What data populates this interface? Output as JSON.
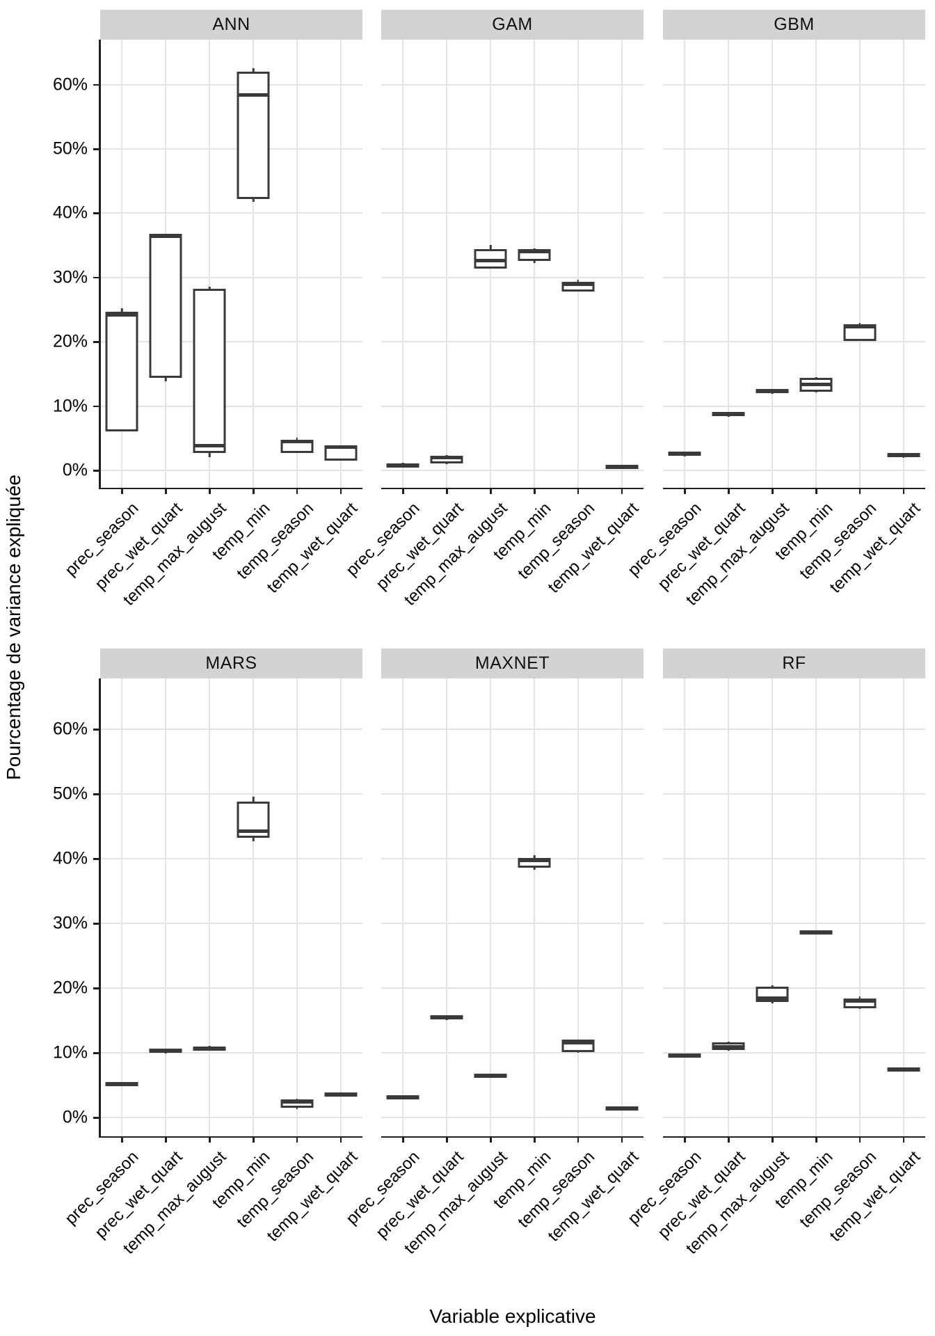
{
  "chart_data": {
    "type": "boxplot",
    "title": "",
    "xlabel": "Variable explicative",
    "ylabel": "Pourcentage de variance expliquée",
    "ylim": [
      -3,
      66
    ],
    "y_tick_values": [
      0,
      10,
      20,
      30,
      40,
      50,
      60
    ],
    "y_tick_labels": [
      "0%",
      "10%",
      "20%",
      "30%",
      "40%",
      "50%",
      "60%"
    ],
    "grid": "light horizontal lines every 10%, light vertical line at each category",
    "legend": "none",
    "categories": [
      "prec_season",
      "prec_wet_quart",
      "temp_max_august",
      "temp_min",
      "temp_season",
      "temp_wet_quart"
    ],
    "facet_layout": [
      "ANN",
      "GAM",
      "GBM",
      "MARS",
      "MAXNET",
      "RF"
    ],
    "facets": [
      {
        "name": "ANN",
        "boxes": [
          {
            "category": "prec_season",
            "min": 6.1,
            "q1": 6.1,
            "median": 24.2,
            "q3": 24.7,
            "max": 25.2
          },
          {
            "category": "prec_wet_quart",
            "min": 13.9,
            "q1": 14.4,
            "median": 36.4,
            "q3": 36.8,
            "max": 36.8
          },
          {
            "category": "temp_max_august",
            "min": 2.1,
            "q1": 2.7,
            "median": 3.8,
            "q3": 28.3,
            "max": 28.6
          },
          {
            "category": "temp_min",
            "min": 41.8,
            "q1": 42.2,
            "median": 58.4,
            "q3": 62.0,
            "max": 62.6
          },
          {
            "category": "temp_season",
            "min": 2.7,
            "q1": 2.7,
            "median": 4.5,
            "q3": 4.8,
            "max": 5.1
          },
          {
            "category": "temp_wet_quart",
            "min": 1.5,
            "q1": 1.5,
            "median": 3.6,
            "q3": 3.8,
            "max": 3.8
          }
        ]
      },
      {
        "name": "GAM",
        "boxes": [
          {
            "category": "prec_season",
            "min": 0.5,
            "q1": 0.6,
            "median": 0.8,
            "q3": 1.1,
            "max": 1.2
          },
          {
            "category": "prec_wet_quart",
            "min": 1.0,
            "q1": 1.1,
            "median": 2.0,
            "q3": 2.3,
            "max": 2.4
          },
          {
            "category": "temp_max_august",
            "min": 31.4,
            "q1": 31.4,
            "median": 32.6,
            "q3": 34.4,
            "max": 35.1
          },
          {
            "category": "temp_min",
            "min": 32.3,
            "q1": 32.6,
            "median": 34.0,
            "q3": 34.4,
            "max": 34.5
          },
          {
            "category": "temp_season",
            "min": 27.8,
            "q1": 27.8,
            "median": 29.0,
            "q3": 29.3,
            "max": 29.6
          },
          {
            "category": "temp_wet_quart",
            "min": 0.3,
            "q1": 0.4,
            "median": 0.6,
            "q3": 0.9,
            "max": 0.9
          }
        ]
      },
      {
        "name": "GBM",
        "boxes": [
          {
            "category": "prec_season",
            "min": 2.2,
            "q1": 2.3,
            "median": 2.6,
            "q3": 2.9,
            "max": 2.9
          },
          {
            "category": "prec_wet_quart",
            "min": 8.3,
            "q1": 8.4,
            "median": 8.7,
            "q3": 9.1,
            "max": 9.1
          },
          {
            "category": "temp_max_august",
            "min": 11.9,
            "q1": 12.0,
            "median": 12.3,
            "q3": 12.7,
            "max": 12.7
          },
          {
            "category": "temp_min",
            "min": 12.1,
            "q1": 12.2,
            "median": 13.4,
            "q3": 14.4,
            "max": 14.5
          },
          {
            "category": "temp_season",
            "min": 20.1,
            "q1": 20.1,
            "median": 22.3,
            "q3": 22.7,
            "max": 22.9
          },
          {
            "category": "temp_wet_quart",
            "min": 2.0,
            "q1": 2.1,
            "median": 2.4,
            "q3": 2.7,
            "max": 2.7
          }
        ]
      },
      {
        "name": "MARS",
        "boxes": [
          {
            "category": "prec_season",
            "min": 4.9,
            "q1": 5.0,
            "median": 5.2,
            "q3": 5.5,
            "max": 5.5
          },
          {
            "category": "prec_wet_quart",
            "min": 9.9,
            "q1": 10.0,
            "median": 10.3,
            "q3": 10.6,
            "max": 10.6
          },
          {
            "category": "temp_max_august",
            "min": 10.3,
            "q1": 10.4,
            "median": 10.7,
            "q3": 11.0,
            "max": 11.1
          },
          {
            "category": "temp_min",
            "min": 42.7,
            "q1": 43.2,
            "median": 44.3,
            "q3": 48.8,
            "max": 49.6
          },
          {
            "category": "temp_season",
            "min": 1.3,
            "q1": 1.5,
            "median": 2.4,
            "q3": 2.8,
            "max": 2.9
          },
          {
            "category": "temp_wet_quart",
            "min": 3.2,
            "q1": 3.3,
            "median": 3.6,
            "q3": 3.9,
            "max": 3.9
          }
        ]
      },
      {
        "name": "MAXNET",
        "boxes": [
          {
            "category": "prec_season",
            "min": 2.8,
            "q1": 2.9,
            "median": 3.1,
            "q3": 3.4,
            "max": 3.4
          },
          {
            "category": "prec_wet_quart",
            "min": 15.1,
            "q1": 15.2,
            "median": 15.5,
            "q3": 15.8,
            "max": 15.8
          },
          {
            "category": "temp_max_august",
            "min": 6.1,
            "q1": 6.2,
            "median": 6.5,
            "q3": 6.8,
            "max": 6.8
          },
          {
            "category": "temp_min",
            "min": 38.3,
            "q1": 38.6,
            "median": 39.7,
            "q3": 40.1,
            "max": 40.5
          },
          {
            "category": "temp_season",
            "min": 10.0,
            "q1": 10.1,
            "median": 11.6,
            "q3": 12.0,
            "max": 12.0
          },
          {
            "category": "temp_wet_quart",
            "min": 1.1,
            "q1": 1.2,
            "median": 1.4,
            "q3": 1.7,
            "max": 1.7
          }
        ]
      },
      {
        "name": "RF",
        "boxes": [
          {
            "category": "prec_season",
            "min": 9.3,
            "q1": 9.4,
            "median": 9.6,
            "q3": 9.9,
            "max": 9.9
          },
          {
            "category": "prec_wet_quart",
            "min": 10.3,
            "q1": 10.4,
            "median": 10.9,
            "q3": 11.6,
            "max": 11.7
          },
          {
            "category": "temp_max_august",
            "min": 17.6,
            "q1": 17.8,
            "median": 18.4,
            "q3": 20.2,
            "max": 20.4
          },
          {
            "category": "temp_min",
            "min": 28.3,
            "q1": 28.4,
            "median": 28.6,
            "q3": 28.9,
            "max": 28.9
          },
          {
            "category": "temp_season",
            "min": 16.8,
            "q1": 16.9,
            "median": 18.0,
            "q3": 18.4,
            "max": 18.7
          },
          {
            "category": "temp_wet_quart",
            "min": 7.1,
            "q1": 7.2,
            "median": 7.4,
            "q3": 7.7,
            "max": 7.7
          }
        ]
      }
    ],
    "colors": {
      "box_stroke": "#3a3a3a",
      "strip_background": "#d3d3d3",
      "gridline": "#e3e3e3",
      "axis_line": "#1f1f1f",
      "panel_background": "#ffffff"
    }
  },
  "axis": {
    "y_title": "Pourcentage de variance expliquée",
    "x_title": "Variable explicative"
  }
}
